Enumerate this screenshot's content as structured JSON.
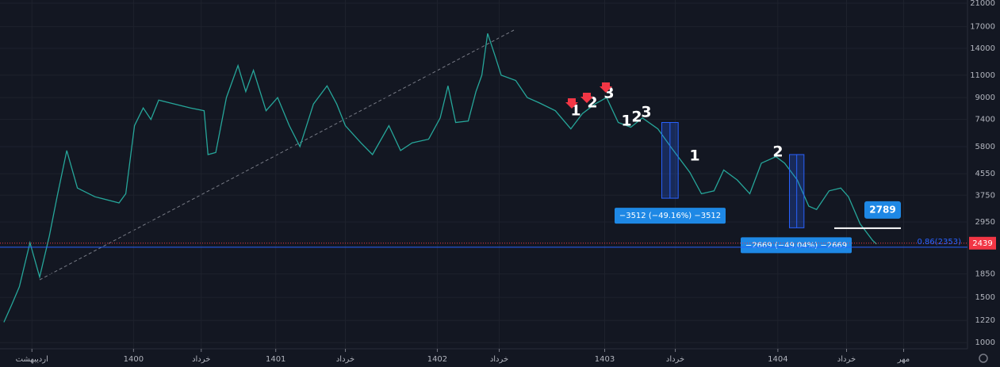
{
  "chart_data": {
    "type": "line",
    "log_scale": true,
    "grid": true,
    "xlim": [
      0,
      100
    ],
    "ylim": [
      946,
      21600
    ],
    "yticks": [
      1000,
      1220,
      1500,
      1850,
      2950,
      3750,
      4550,
      5800,
      7400,
      9000,
      11000,
      14000,
      17000,
      21000
    ],
    "xticks": [
      {
        "value": 3.3,
        "label": "اردیبهشت"
      },
      {
        "value": 13.8,
        "label": "1400"
      },
      {
        "value": 20.8,
        "label": "خرداد"
      },
      {
        "value": 28.5,
        "label": "1401"
      },
      {
        "value": 35.7,
        "label": "خرداد"
      },
      {
        "value": 45.2,
        "label": "1402"
      },
      {
        "value": 51.6,
        "label": "خرداد"
      },
      {
        "value": 62.5,
        "label": "1403"
      },
      {
        "value": 69.8,
        "label": "خرداد"
      },
      {
        "value": 80.4,
        "label": "1404"
      },
      {
        "value": 87.5,
        "label": "خرداد"
      },
      {
        "value": 93.4,
        "label": "مهر"
      }
    ],
    "series": [
      {
        "color": "#26a69a",
        "x": [
          0.4,
          1.2,
          2.0,
          3.1,
          4.1,
          5.1,
          5.9,
          6.9,
          8.0,
          9.8,
          12.3,
          13.0,
          13.9,
          14.8,
          15.6,
          16.4,
          19.7,
          21.1,
          21.5,
          22.3,
          23.4,
          24.6,
          25.4,
          26.2,
          27.5,
          28.7,
          29.9,
          31.0,
          32.4,
          33.8,
          34.8,
          35.7,
          37.3,
          38.5,
          40.2,
          41.4,
          42.6,
          44.3,
          45.5,
          46.3,
          47.1,
          48.4,
          49.2,
          49.8,
          50.4,
          51.2,
          51.8,
          53.3,
          54.5,
          55.7,
          57.4,
          59.0,
          60.2,
          61.5,
          62.7,
          63.9,
          65.2,
          66.4,
          68.0,
          69.3,
          71.3,
          72.5,
          73.8,
          74.8,
          76.2,
          77.5,
          78.7,
          80.2,
          81.1,
          82.4,
          83.6,
          84.4,
          85.7,
          86.9,
          87.7,
          88.9,
          90.2,
          90.6
        ],
        "values": [
          1200,
          1400,
          1650,
          2450,
          1800,
          2600,
          3700,
          5600,
          4000,
          3700,
          3500,
          3800,
          7000,
          8200,
          7400,
          8800,
          8200,
          8000,
          5400,
          5500,
          9000,
          12000,
          9500,
          11500,
          8000,
          9000,
          7000,
          5800,
          8500,
          10000,
          8500,
          7000,
          6000,
          5400,
          7000,
          5600,
          6000,
          6200,
          7500,
          10000,
          7200,
          7300,
          9500,
          11000,
          16000,
          13000,
          11000,
          10500,
          9000,
          8600,
          8000,
          6800,
          7800,
          8500,
          9000,
          7200,
          6900,
          7500,
          6800,
          5800,
          4600,
          3800,
          3900,
          4700,
          4300,
          3800,
          5000,
          5300,
          5000,
          4300,
          3400,
          3300,
          3900,
          4000,
          3700,
          2900,
          2500,
          2420
        ]
      }
    ],
    "last_price": 2439,
    "last_price_color": "#f23645",
    "fib_level": 2353,
    "fib_label": "0.86(2353)",
    "fib_color": "#2962ff",
    "target": 2789,
    "measures": [
      {
        "label": "−3512 (−49.16%) −3512",
        "x0": 68.4,
        "x1": 70.1,
        "from": 7200,
        "to": 3650
      },
      {
        "label": "−2669 (−49.04%) −2669",
        "x0": 81.6,
        "x1": 83.1,
        "from": 5400,
        "to": 2800
      }
    ],
    "waves": [
      "1",
      "2",
      "3",
      "1",
      "2",
      "3",
      "1",
      "2"
    ]
  }
}
